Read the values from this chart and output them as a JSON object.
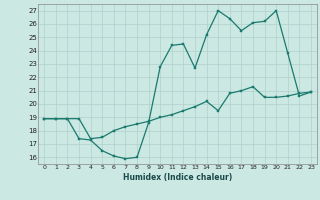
{
  "xlabel": "Humidex (Indice chaleur)",
  "bg_color": "#cbe8e3",
  "grid_color": "#b0d0cc",
  "line_color": "#1a7a6e",
  "xlim": [
    -0.5,
    23.5
  ],
  "ylim": [
    15.5,
    27.5
  ],
  "xticks": [
    0,
    1,
    2,
    3,
    4,
    5,
    6,
    7,
    8,
    9,
    10,
    11,
    12,
    13,
    14,
    15,
    16,
    17,
    18,
    19,
    20,
    21,
    22,
    23
  ],
  "yticks": [
    16,
    17,
    18,
    19,
    20,
    21,
    22,
    23,
    24,
    25,
    26,
    27
  ],
  "line1_x": [
    0,
    1,
    2,
    3,
    4,
    5,
    6,
    7,
    8,
    9,
    10,
    11,
    12,
    13,
    14,
    15,
    16,
    17,
    18,
    19,
    20,
    21,
    22,
    23
  ],
  "line1_y": [
    18.9,
    18.9,
    18.9,
    17.4,
    17.3,
    16.5,
    16.1,
    15.9,
    16.0,
    18.6,
    22.8,
    24.4,
    24.5,
    22.7,
    25.2,
    27.0,
    26.4,
    25.5,
    26.1,
    26.2,
    27.0,
    23.8,
    20.6,
    20.9
  ],
  "line2_x": [
    0,
    1,
    2,
    3,
    4,
    5,
    6,
    7,
    8,
    9,
    10,
    11,
    12,
    13,
    14,
    15,
    16,
    17,
    18,
    19,
    20,
    21,
    22,
    23
  ],
  "line2_y": [
    18.9,
    18.9,
    18.9,
    18.9,
    17.4,
    17.5,
    18.0,
    18.3,
    18.5,
    18.7,
    19.0,
    19.2,
    19.5,
    19.8,
    20.2,
    19.5,
    20.8,
    21.0,
    21.3,
    20.5,
    20.5,
    20.6,
    20.8,
    20.9
  ]
}
